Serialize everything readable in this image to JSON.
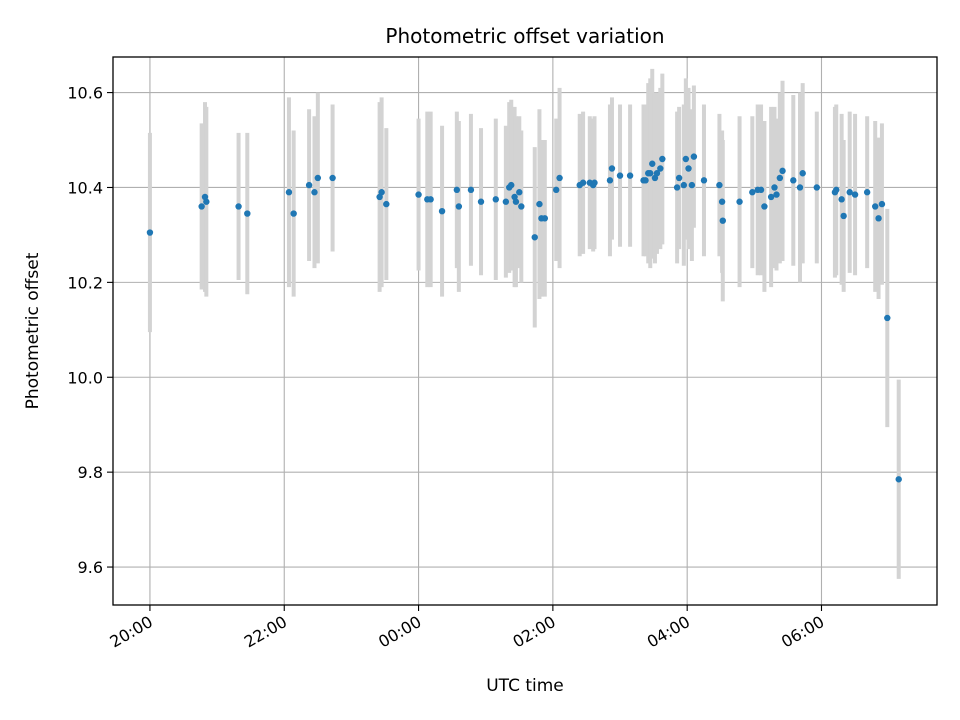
{
  "chart_data": {
    "type": "scatter",
    "title": "Photometric offset variation",
    "xlabel": "UTC time",
    "ylabel": "Photometric offset",
    "x_tick_labels": [
      "20:00",
      "22:00",
      "00:00",
      "02:00",
      "04:00",
      "06:00"
    ],
    "x_tick_hours": [
      20,
      22,
      24,
      26,
      28,
      30
    ],
    "xlim_hours": [
      19.45,
      31.72
    ],
    "y_ticks": [
      9.6,
      9.8,
      10.0,
      10.2,
      10.4,
      10.6
    ],
    "y_tick_labels": [
      "9.6",
      "9.8",
      "10.0",
      "10.2",
      "10.4",
      "10.6"
    ],
    "ylim": [
      9.52,
      10.675
    ],
    "grid": true,
    "colors": {
      "points": "#1f77b4",
      "errorbars": "#d3d3d3",
      "grid": "#b0b0b0"
    },
    "series": [
      {
        "x_hours": [
          20.0,
          20.77,
          20.82,
          20.84,
          21.32,
          21.45,
          22.07,
          22.14,
          22.37,
          22.45,
          22.5,
          22.72,
          23.42,
          23.45,
          23.52,
          24.0,
          24.13,
          24.18,
          24.35,
          24.57,
          24.6,
          24.78,
          24.93,
          25.15,
          25.3,
          25.35,
          25.38,
          25.43,
          25.45,
          25.5,
          25.53,
          25.73,
          25.8,
          25.83,
          25.88,
          26.05,
          26.1,
          26.4,
          26.45,
          26.55,
          26.6,
          26.62,
          26.85,
          26.88,
          27.0,
          27.15,
          27.35,
          27.38,
          27.42,
          27.45,
          27.48,
          27.52,
          27.55,
          27.6,
          27.63,
          27.85,
          27.88,
          27.95,
          27.98,
          28.02,
          28.07,
          28.1,
          28.25,
          28.48,
          28.52,
          28.53,
          28.78,
          28.97,
          29.05,
          29.1,
          29.15,
          29.25,
          29.3,
          29.33,
          29.38,
          29.42,
          29.58,
          29.68,
          29.72,
          29.93,
          30.2,
          30.22,
          30.3,
          30.33,
          30.42,
          30.5,
          30.68,
          30.8,
          30.85,
          30.9,
          30.98,
          31.15
        ],
        "y": [
          10.305,
          10.36,
          10.38,
          10.37,
          10.36,
          10.345,
          10.39,
          10.345,
          10.405,
          10.39,
          10.42,
          10.42,
          10.38,
          10.39,
          10.365,
          10.385,
          10.375,
          10.375,
          10.35,
          10.395,
          10.36,
          10.395,
          10.37,
          10.375,
          10.37,
          10.4,
          10.405,
          10.38,
          10.37,
          10.39,
          10.36,
          10.295,
          10.365,
          10.335,
          10.335,
          10.395,
          10.42,
          10.405,
          10.41,
          10.41,
          10.405,
          10.41,
          10.415,
          10.44,
          10.425,
          10.425,
          10.415,
          10.415,
          10.43,
          10.43,
          10.45,
          10.42,
          10.43,
          10.44,
          10.46,
          10.4,
          10.42,
          10.405,
          10.46,
          10.44,
          10.405,
          10.465,
          10.415,
          10.405,
          10.37,
          10.33,
          10.37,
          10.39,
          10.395,
          10.395,
          10.36,
          10.38,
          10.4,
          10.385,
          10.42,
          10.435,
          10.415,
          10.4,
          10.43,
          10.4,
          10.39,
          10.395,
          10.375,
          10.34,
          10.39,
          10.385,
          10.39,
          10.36,
          10.335,
          10.365,
          10.125,
          9.785
        ],
        "yerr": [
          0.21,
          0.175,
          0.2,
          0.2,
          0.155,
          0.17,
          0.2,
          0.175,
          0.16,
          0.16,
          0.18,
          0.155,
          0.2,
          0.2,
          0.16,
          0.16,
          0.185,
          0.185,
          0.18,
          0.165,
          0.18,
          0.16,
          0.155,
          0.17,
          0.16,
          0.18,
          0.18,
          0.19,
          0.18,
          0.16,
          0.16,
          0.19,
          0.2,
          0.165,
          0.165,
          0.15,
          0.19,
          0.15,
          0.15,
          0.14,
          0.14,
          0.14,
          0.16,
          0.15,
          0.15,
          0.15,
          0.16,
          0.16,
          0.19,
          0.2,
          0.2,
          0.18,
          0.17,
          0.17,
          0.18,
          0.16,
          0.15,
          0.17,
          0.17,
          0.17,
          0.16,
          0.15,
          0.16,
          0.15,
          0.15,
          0.17,
          0.18,
          0.16,
          0.18,
          0.18,
          0.18,
          0.19,
          0.17,
          0.16,
          0.18,
          0.19,
          0.18,
          0.2,
          0.19,
          0.16,
          0.18,
          0.18,
          0.18,
          0.16,
          0.17,
          0.17,
          0.16,
          0.18,
          0.17,
          0.17,
          0.23,
          0.21
        ]
      }
    ]
  }
}
